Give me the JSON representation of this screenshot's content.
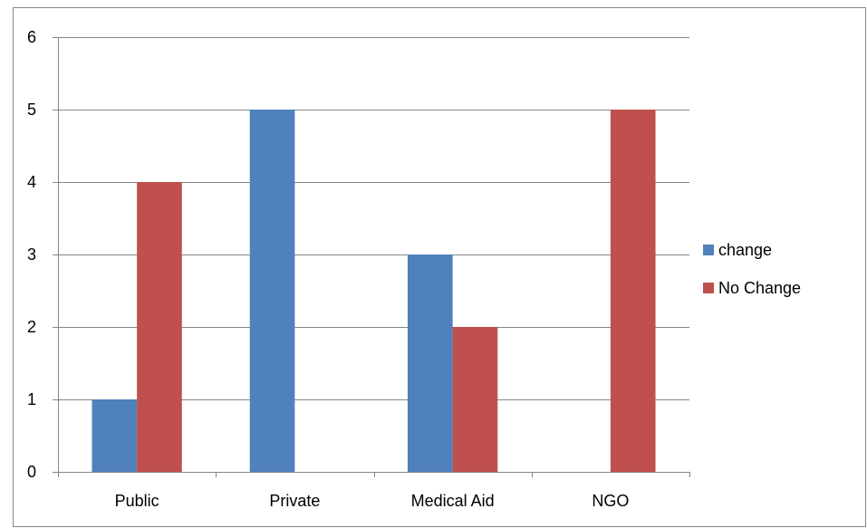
{
  "chart_data": {
    "type": "bar",
    "categories": [
      "Public",
      "Private",
      "Medical Aid",
      "NGO"
    ],
    "series": [
      {
        "name": "change",
        "color": "#4F81BD",
        "values": [
          1,
          5,
          3,
          0
        ]
      },
      {
        "name": "No Change",
        "color": "#C0504D",
        "values": [
          4,
          0,
          2,
          5
        ]
      }
    ],
    "ylim": [
      0,
      6
    ],
    "yticks": [
      0,
      1,
      2,
      3,
      4,
      5,
      6
    ],
    "grid": true,
    "legend_position": "right",
    "title": "",
    "xlabel": "",
    "ylabel": ""
  }
}
